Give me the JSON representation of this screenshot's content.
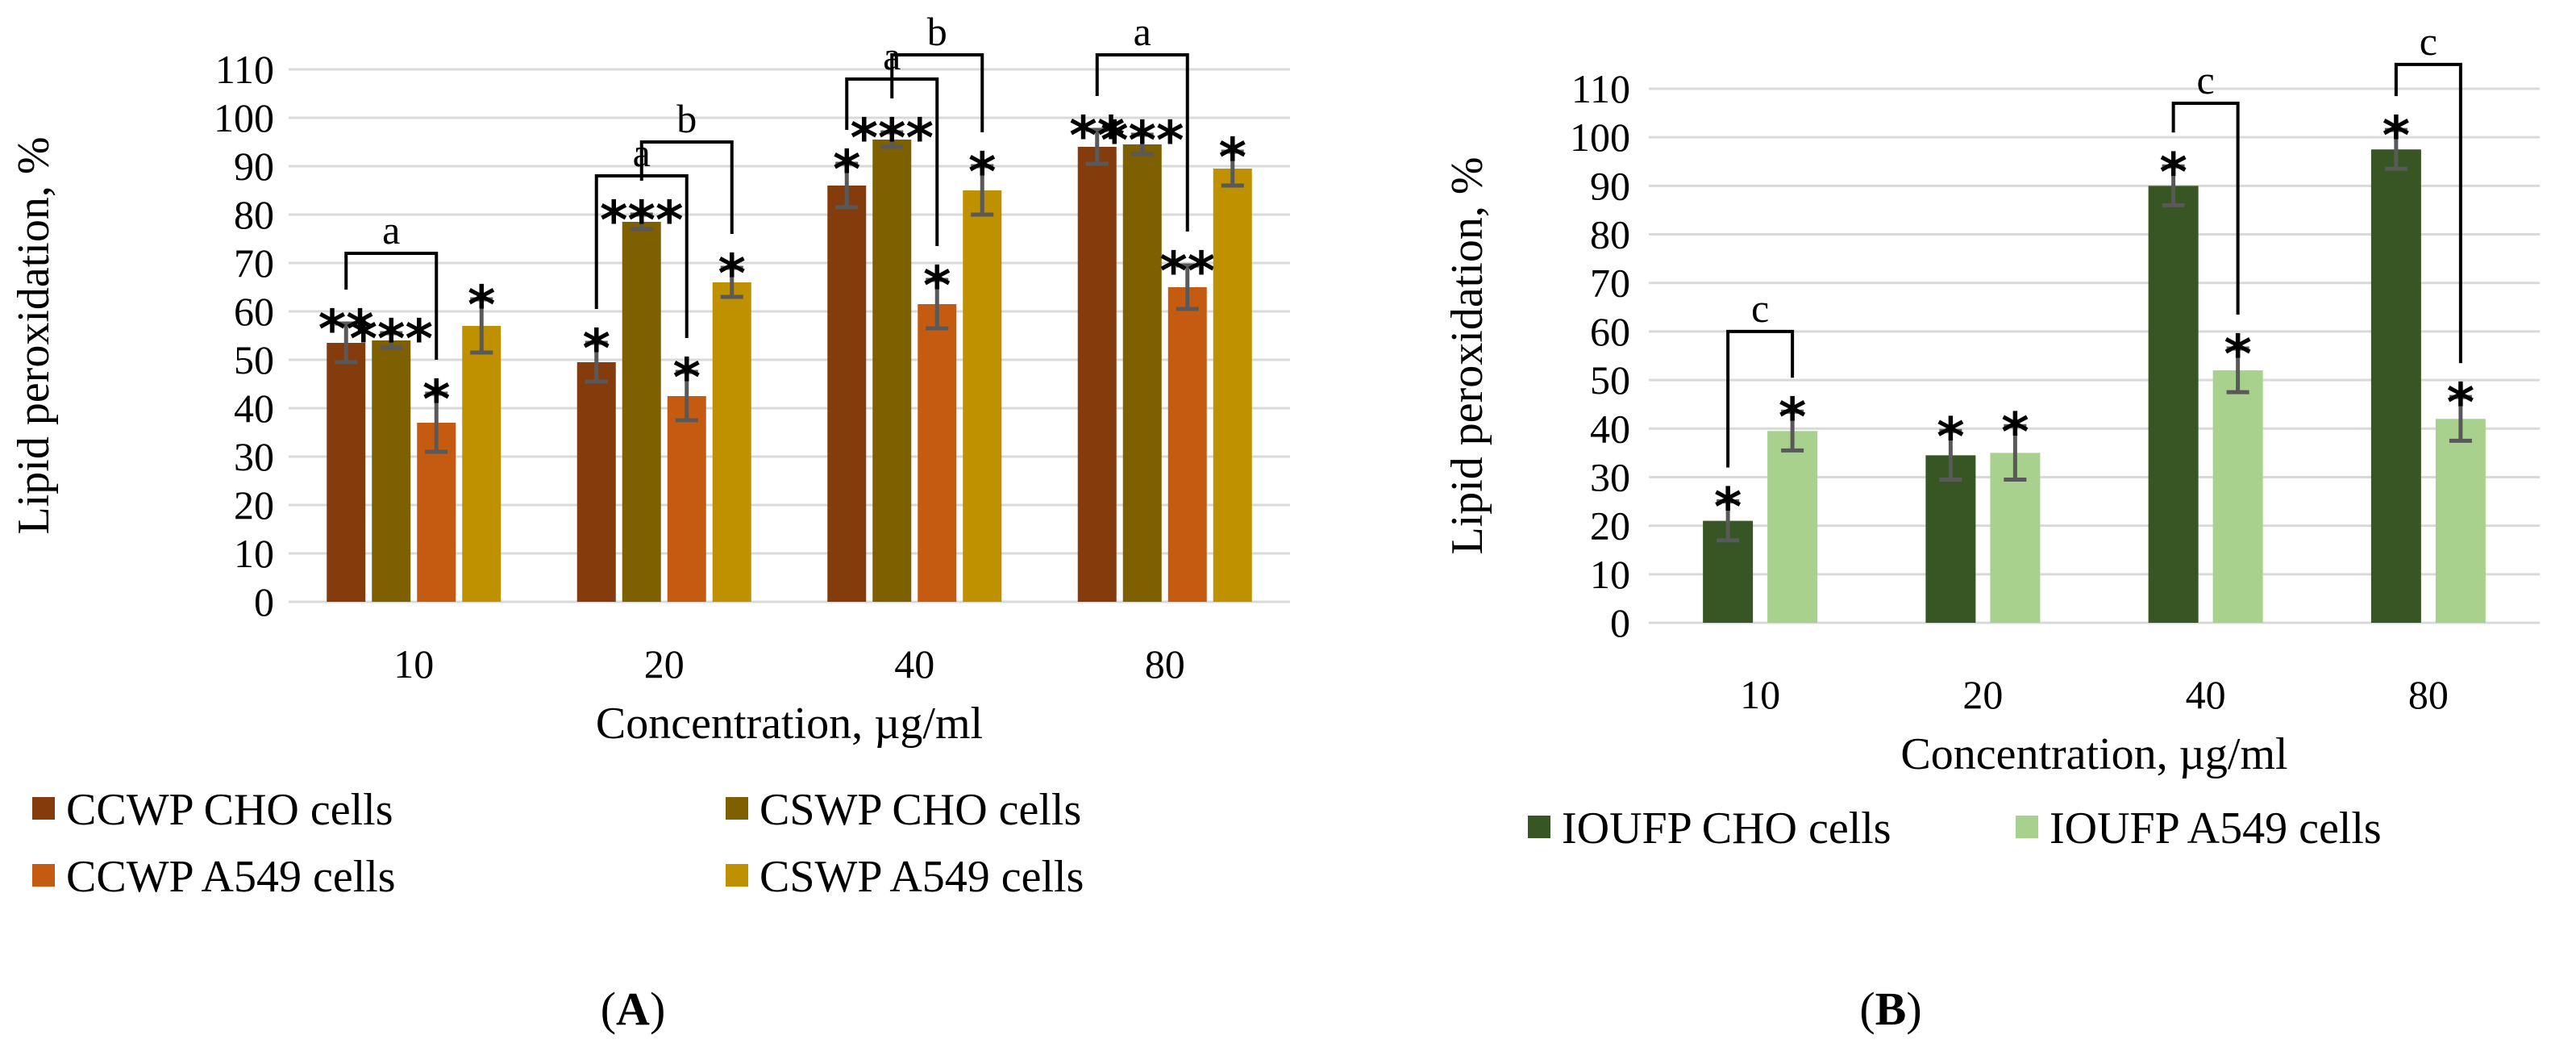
{
  "chart_data": [
    {
      "panel": "A",
      "panel_label_paren_open": "(",
      "panel_label_letter": "A",
      "panel_label_paren_close": ")",
      "type": "bar",
      "title": "",
      "xlabel": "Concentration, µg/ml",
      "ylabel": "Lipid peroxidation, %",
      "ylim": [
        0,
        110
      ],
      "ytick_step": 10,
      "yticks": [
        "0",
        "10",
        "20",
        "30",
        "40",
        "50",
        "60",
        "70",
        "80",
        "90",
        "100",
        "110"
      ],
      "grid": true,
      "legend_position": "bottom",
      "categories": [
        "10",
        "20",
        "40",
        "80"
      ],
      "series": [
        {
          "name": "CCWP  CHO cells",
          "color": "#843c0c",
          "values": [
            53.5,
            49.5,
            86,
            94
          ],
          "errors": [
            4,
            4,
            4.5,
            3.5
          ],
          "marks": [
            "**",
            "*",
            "*",
            "**"
          ]
        },
        {
          "name": "CSWP CHO cells",
          "color": "#7f6000",
          "values": [
            54,
            78.5,
            95.5,
            94.5
          ],
          "errors": [
            1.5,
            1.5,
            1.5,
            2
          ],
          "marks": [
            "***",
            "***",
            "***",
            "***"
          ]
        },
        {
          "name": "CCWP A549 cells",
          "color": "#c55a11",
          "values": [
            37,
            42.5,
            61.5,
            65
          ],
          "errors": [
            6,
            5,
            5,
            4.5
          ],
          "marks": [
            "*",
            "*",
            "*",
            "**"
          ]
        },
        {
          "name": "CSWP A549 cells",
          "color": "#bf9000",
          "values": [
            57,
            66,
            85,
            89.5
          ],
          "errors": [
            5.5,
            3,
            5,
            3.5
          ],
          "marks": [
            "*",
            "*",
            "*",
            "*"
          ]
        }
      ],
      "brackets": [
        {
          "label": "a",
          "category": 0,
          "from_series": 0,
          "to_series": 2,
          "top": 72
        },
        {
          "label": "a",
          "category": 1,
          "from_series": 0,
          "to_series": 2,
          "top": 88
        },
        {
          "label": "b",
          "category": 1,
          "from_series": 1,
          "to_series": 3,
          "top": 95
        },
        {
          "label": "a",
          "category": 2,
          "from_series": 0,
          "to_series": 2,
          "top": 108
        },
        {
          "label": "b",
          "category": 2,
          "from_series": 1,
          "to_series": 3,
          "top": 113
        },
        {
          "label": "a",
          "category": 3,
          "from_series": 0,
          "to_series": 2,
          "top": 113
        }
      ]
    },
    {
      "panel": "B",
      "panel_label_paren_open": "(",
      "panel_label_letter": "B",
      "panel_label_paren_close": ")",
      "type": "bar",
      "title": "",
      "xlabel": "Concentration, µg/ml",
      "ylabel": "Lipid peroxidation, %",
      "ylim": [
        0,
        110
      ],
      "ytick_step": 10,
      "yticks": [
        "0",
        "10",
        "20",
        "30",
        "40",
        "50",
        "60",
        "70",
        "80",
        "90",
        "100",
        "110"
      ],
      "grid": true,
      "legend_position": "bottom",
      "categories": [
        "10",
        "20",
        "40",
        "80"
      ],
      "series": [
        {
          "name": "IOUFP CHO cells",
          "color": "#375623",
          "values": [
            21,
            34.5,
            90,
            97.5
          ],
          "errors": [
            4,
            5,
            4,
            4
          ],
          "marks": [
            "*",
            "*",
            "*",
            "*"
          ]
        },
        {
          "name": "IOUFP A549 cells",
          "color": "#a9d18e",
          "values": [
            39.5,
            35,
            52,
            42
          ],
          "errors": [
            4,
            5.5,
            4.5,
            4.5
          ],
          "marks": [
            "*",
            "*",
            "*",
            "*"
          ]
        }
      ],
      "brackets": [
        {
          "label": "c",
          "category": 0,
          "from_series": 0,
          "to_series": 1,
          "top": 60
        },
        {
          "label": "c",
          "category": 2,
          "from_series": 0,
          "to_series": 1,
          "top": 107
        },
        {
          "label": "c",
          "category": 3,
          "from_series": 0,
          "to_series": 1,
          "top": 115
        }
      ]
    }
  ]
}
